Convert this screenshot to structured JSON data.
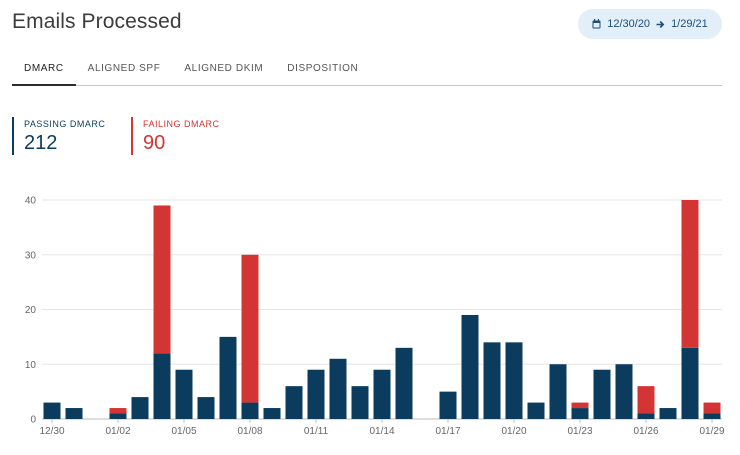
{
  "header": {
    "title": "Emails Processed",
    "date_start": "12/30/20",
    "date_end": "1/29/21"
  },
  "tabs": [
    {
      "label": "DMARC",
      "active": true
    },
    {
      "label": "ALIGNED SPF",
      "active": false
    },
    {
      "label": "ALIGNED DKIM",
      "active": false
    },
    {
      "label": "DISPOSITION",
      "active": false
    }
  ],
  "metrics": {
    "passing": {
      "label": "PASSING DMARC",
      "value": "212",
      "color": "#0b3c5d"
    },
    "failing": {
      "label": "FAILING DMARC",
      "value": "90",
      "color": "#d33434"
    }
  },
  "chart_data": {
    "type": "bar",
    "stacked": true,
    "categories": [
      "12/30",
      "12/31",
      "01/01",
      "01/02",
      "01/03",
      "01/04",
      "01/05",
      "01/06",
      "01/07",
      "01/08",
      "01/09",
      "01/10",
      "01/11",
      "01/12",
      "01/13",
      "01/14",
      "01/15",
      "01/16",
      "01/17",
      "01/18",
      "01/19",
      "01/20",
      "01/21",
      "01/22",
      "01/23",
      "01/24",
      "01/25",
      "01/26",
      "01/27",
      "01/28",
      "01/29"
    ],
    "tick_labels": [
      "12/30",
      "01/02",
      "01/05",
      "01/08",
      "01/11",
      "01/14",
      "01/17",
      "01/20",
      "01/23",
      "01/26",
      "01/29"
    ],
    "series": [
      {
        "key": "passing",
        "color": "#0b3c5d",
        "values": [
          3,
          2,
          0,
          1,
          4,
          12,
          9,
          4,
          15,
          3,
          2,
          6,
          9,
          11,
          6,
          9,
          13,
          0,
          5,
          19,
          14,
          14,
          3,
          10,
          2,
          9,
          10,
          1,
          2,
          13,
          1
        ]
      },
      {
        "key": "failing",
        "color": "#d33434",
        "values": [
          0,
          0,
          0,
          1,
          0,
          27,
          0,
          0,
          0,
          27,
          0,
          0,
          0,
          0,
          0,
          0,
          0,
          0,
          0,
          0,
          0,
          0,
          0,
          0,
          1,
          0,
          0,
          5,
          0,
          27,
          2
        ]
      }
    ],
    "ylim": [
      0,
      40
    ],
    "yticks": [
      0,
      10,
      20,
      30,
      40
    ],
    "grid": true
  }
}
